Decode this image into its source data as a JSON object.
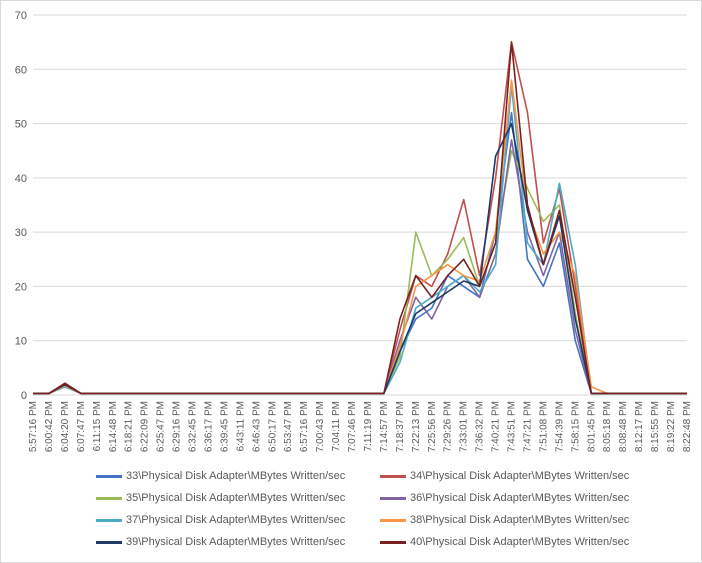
{
  "chart_data": {
    "type": "line",
    "title": "",
    "xlabel": "",
    "ylabel": "",
    "ylim": [
      0,
      70
    ],
    "yticks": [
      0,
      10,
      20,
      30,
      40,
      50,
      60,
      70
    ],
    "grid": true,
    "legend_position": "bottom",
    "x_tick_labels": [
      "5:57:16 PM",
      "6:00:42 PM",
      "6:04:20 PM",
      "6:07:47 PM",
      "6:11:15 PM",
      "6:14:48 PM",
      "6:18:21 PM",
      "6:22:09 PM",
      "6:25:47 PM",
      "6:29:16 PM",
      "6:32:45 PM",
      "6:36:17 PM",
      "6:39:45 PM",
      "6:43:11 PM",
      "6:46:43 PM",
      "6:50:17 PM",
      "6:53:47 PM",
      "6:57:16 PM",
      "7:00:43 PM",
      "7:04:11 PM",
      "7:07:46 PM",
      "7:11:19 PM",
      "7:14:57 PM",
      "7:18:37 PM",
      "7:22:13 PM",
      "7:25:56 PM",
      "7:29:26 PM",
      "7:33:01 PM",
      "7:36:32 PM",
      "7:40:21 PM",
      "7:43:51 PM",
      "7:47:21 PM",
      "7:51:08 PM",
      "7:54:39 PM",
      "7:58:15 PM",
      "8:01:45 PM",
      "8:05:18 PM",
      "8:08:48 PM",
      "8:12:17 PM",
      "8:15:55 PM",
      "8:19:22 PM",
      "8:22:48 PM"
    ],
    "series": [
      {
        "name": "33\\Physical Disk Adapter\\MBytes Written/sec",
        "color": "#4472c4",
        "values": [
          0.3,
          0.3,
          2.0,
          0.3,
          0.3,
          0.3,
          0.3,
          0.3,
          0.3,
          0.3,
          0.3,
          0.3,
          0.3,
          0.3,
          0.3,
          0.3,
          0.3,
          0.3,
          0.3,
          0.3,
          0.3,
          0.3,
          0.3,
          8,
          14,
          16,
          22,
          20,
          18,
          30,
          52,
          25,
          20,
          28,
          10,
          0.3,
          0.3,
          0.3,
          0.3,
          0.3,
          0.3,
          0.3
        ]
      },
      {
        "name": "34\\Physical Disk Adapter\\MBytes Written/sec",
        "color": "#c0504d",
        "values": [
          0.3,
          0.3,
          2.2,
          0.3,
          0.3,
          0.3,
          0.3,
          0.3,
          0.3,
          0.3,
          0.3,
          0.3,
          0.3,
          0.3,
          0.3,
          0.3,
          0.3,
          0.3,
          0.3,
          0.3,
          0.3,
          0.3,
          0.3,
          12,
          22,
          20,
          26,
          36,
          22,
          40,
          65,
          52,
          28,
          38,
          20,
          0.3,
          0.3,
          0.3,
          0.3,
          0.3,
          0.3,
          0.3
        ]
      },
      {
        "name": "35\\Physical Disk Adapter\\MBytes Written/sec",
        "color": "#9bbb59",
        "values": [
          0.3,
          0.3,
          1.8,
          0.3,
          0.3,
          0.3,
          0.3,
          0.3,
          0.3,
          0.3,
          0.3,
          0.3,
          0.3,
          0.3,
          0.3,
          0.3,
          0.3,
          0.3,
          0.3,
          0.3,
          0.3,
          0.3,
          0.3,
          7,
          30,
          22,
          25,
          29,
          20,
          28,
          45,
          38,
          32,
          35,
          15,
          0.3,
          0.3,
          0.3,
          0.3,
          0.3,
          0.3,
          0.3
        ]
      },
      {
        "name": "36\\Physical Disk Adapter\\MBytes Written/sec",
        "color": "#8064a2",
        "values": [
          0.3,
          0.3,
          1.6,
          0.3,
          0.3,
          0.3,
          0.3,
          0.3,
          0.3,
          0.3,
          0.3,
          0.3,
          0.3,
          0.3,
          0.3,
          0.3,
          0.3,
          0.3,
          0.3,
          0.3,
          0.3,
          0.3,
          0.3,
          10,
          18,
          14,
          20,
          22,
          18,
          26,
          47,
          30,
          22,
          30,
          12,
          0.3,
          0.3,
          0.3,
          0.3,
          0.3,
          0.3,
          0.3
        ]
      },
      {
        "name": "37\\Physical Disk Adapter\\MBytes Written/sec",
        "color": "#4bacc6",
        "values": [
          0.3,
          0.3,
          1.5,
          0.3,
          0.3,
          0.3,
          0.3,
          0.3,
          0.3,
          0.3,
          0.3,
          0.3,
          0.3,
          0.3,
          0.3,
          0.3,
          0.3,
          0.3,
          0.3,
          0.3,
          0.3,
          0.3,
          0.3,
          6,
          16,
          18,
          20,
          22,
          19,
          24,
          57,
          28,
          24,
          39,
          24,
          0.3,
          0.3,
          0.3,
          0.3,
          0.3,
          0.3,
          0.3
        ]
      },
      {
        "name": "38\\Physical Disk Adapter\\MBytes Written/sec",
        "color": "#f79646",
        "values": [
          0.3,
          0.3,
          1.7,
          0.3,
          0.3,
          0.3,
          0.3,
          0.3,
          0.3,
          0.3,
          0.3,
          0.3,
          0.3,
          0.3,
          0.3,
          0.3,
          0.3,
          0.3,
          0.3,
          0.3,
          0.3,
          0.3,
          0.3,
          9,
          20,
          22,
          24,
          22,
          21,
          30,
          58,
          34,
          26,
          30,
          22,
          1.5,
          0.3,
          0.3,
          0.3,
          0.3,
          0.3,
          0.3
        ]
      },
      {
        "name": "39\\Physical Disk Adapter\\MBytes Written/sec",
        "color": "#1f3864",
        "values": [
          0.3,
          0.3,
          1.9,
          0.3,
          0.3,
          0.3,
          0.3,
          0.3,
          0.3,
          0.3,
          0.3,
          0.3,
          0.3,
          0.3,
          0.3,
          0.3,
          0.3,
          0.3,
          0.3,
          0.3,
          0.3,
          0.3,
          0.3,
          8,
          15,
          17,
          19,
          21,
          20,
          44,
          50,
          34,
          24,
          33,
          14,
          0.3,
          0.3,
          0.3,
          0.3,
          0.3,
          0.3,
          0.3
        ]
      },
      {
        "name": "40\\Physical Disk Adapter\\MBytes Written/sec",
        "color": "#7b2020",
        "values": [
          0.3,
          0.3,
          2.1,
          0.3,
          0.3,
          0.3,
          0.3,
          0.3,
          0.3,
          0.3,
          0.3,
          0.3,
          0.3,
          0.3,
          0.3,
          0.3,
          0.3,
          0.3,
          0.3,
          0.3,
          0.3,
          0.3,
          0.3,
          14,
          22,
          18,
          22,
          25,
          20,
          28,
          65,
          35,
          24,
          34,
          18,
          0.3,
          0.3,
          0.3,
          0.3,
          0.3,
          0.3,
          0.3
        ]
      }
    ]
  }
}
